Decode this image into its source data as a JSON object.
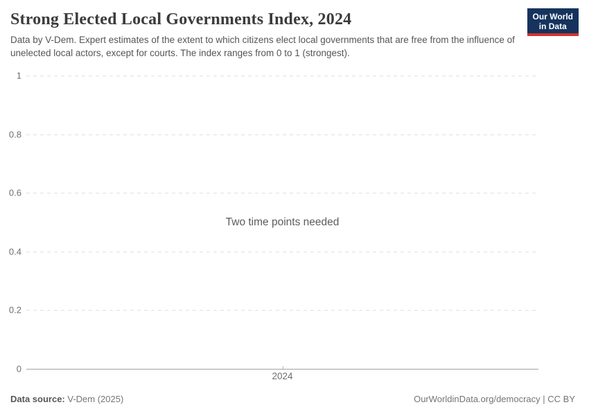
{
  "header": {
    "title": "Strong Elected Local Governments Index, 2024",
    "subtitle": "Data by V-Dem. Expert estimates of the extent to which citizens elect local governments that are free from the influence of unelected local actors, except for courts. The index ranges from 0 to 1 (strongest)."
  },
  "logo": {
    "line1": "Our World",
    "line2": "in Data",
    "bg_color": "#15335d",
    "stripe_color": "#d0342c"
  },
  "chart_data": {
    "type": "line",
    "title": "Strong Elected Local Governments Index, 2024",
    "xlabel": "",
    "ylabel": "",
    "x_tick_labels": [
      "2024"
    ],
    "y_ticks": [
      0,
      0.2,
      0.4,
      0.6,
      0.8,
      1
    ],
    "y_tick_labels": [
      "0",
      "0.2",
      "0.4",
      "0.6",
      "0.8",
      "1"
    ],
    "ylim": [
      0,
      1
    ],
    "grid": true,
    "gridline_color": "#e0e0e0",
    "axis_line_color": "#a3a3a3",
    "series": [],
    "empty_state_message": "Two time points needed"
  },
  "footer": {
    "source_label": "Data source:",
    "source_value": "V-Dem (2025)",
    "url": "OurWorldinData.org/democracy",
    "separator": " | ",
    "license": "CC BY"
  }
}
